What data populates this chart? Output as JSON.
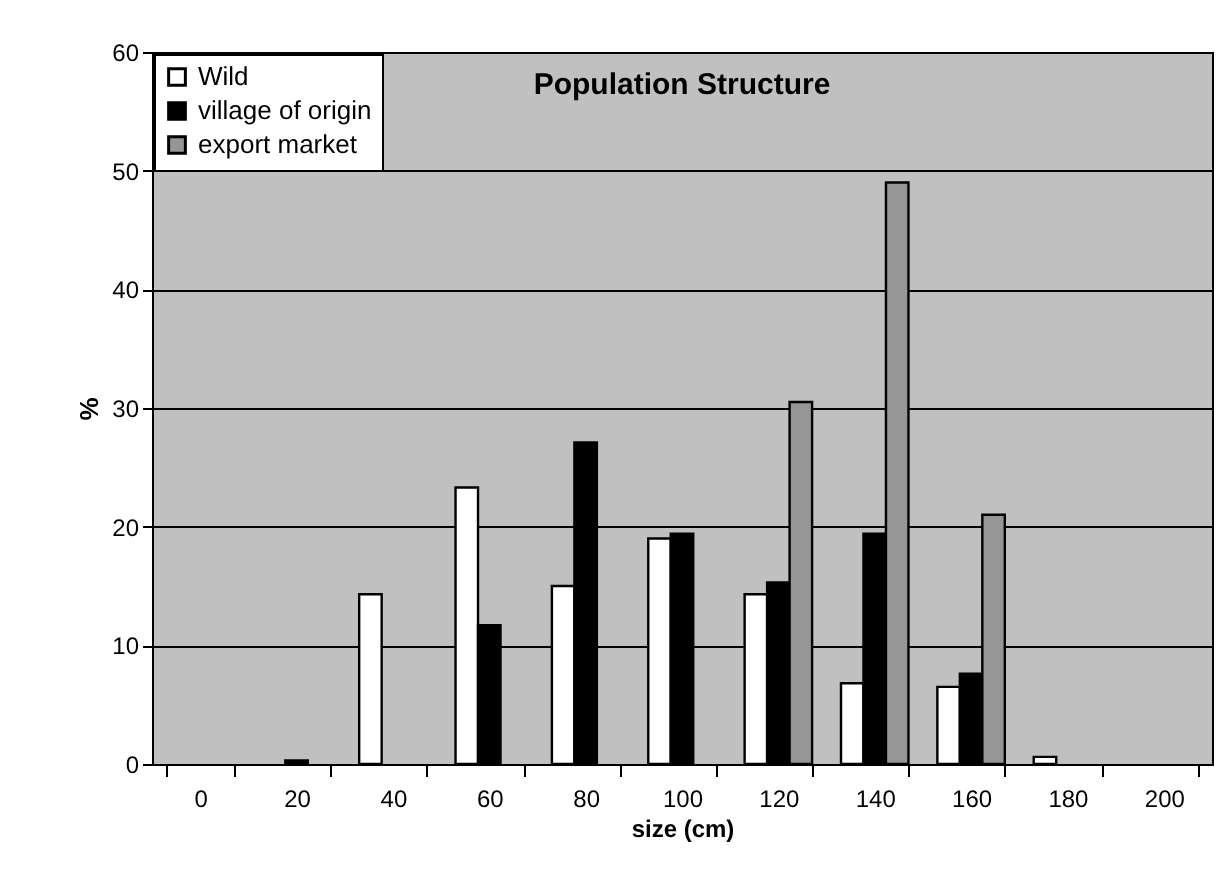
{
  "chart_data": {
    "type": "bar",
    "title": "Population Structure",
    "xlabel": "size (cm)",
    "ylabel": "%",
    "categories": [
      "0",
      "20",
      "40",
      "60",
      "80",
      "100",
      "120",
      "140",
      "160",
      "180",
      "200"
    ],
    "series": [
      {
        "name": "Wild",
        "color": "#ffffff",
        "values": [
          null,
          null,
          14.3,
          23.3,
          15,
          19,
          14.3,
          6.8,
          6.5,
          0.6,
          null
        ]
      },
      {
        "name": "village of origin",
        "color": "#000000",
        "values": [
          null,
          0.3,
          null,
          11.7,
          27.1,
          19.4,
          15.3,
          19.4,
          7.6,
          null,
          null
        ]
      },
      {
        "name": "export market",
        "color": "#969696",
        "values": [
          null,
          null,
          null,
          null,
          null,
          null,
          30.5,
          49,
          21,
          null,
          null
        ]
      }
    ],
    "ylim": [
      0,
      60
    ],
    "yticks": [
      0,
      10,
      20,
      30,
      40,
      50,
      60
    ],
    "grid": "y",
    "legend": "top left"
  }
}
